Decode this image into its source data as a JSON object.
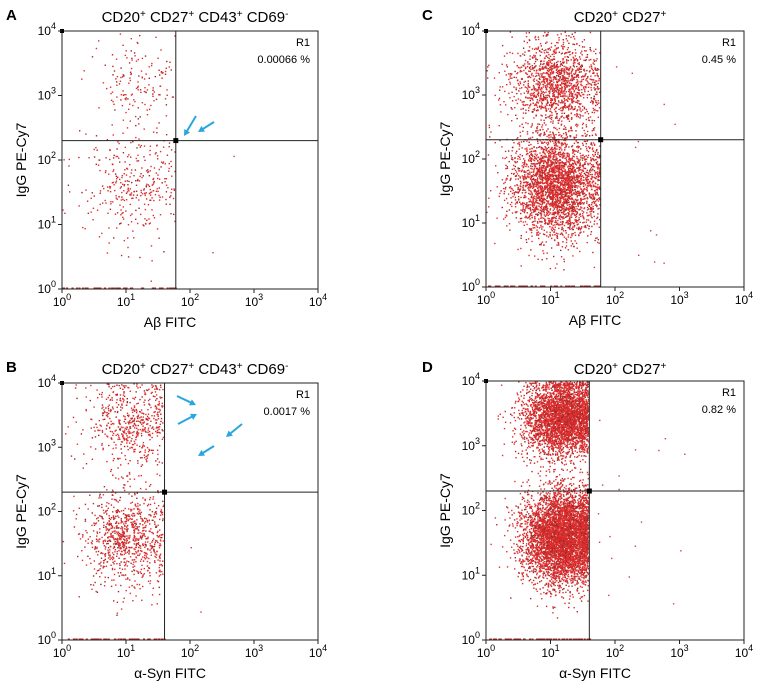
{
  "figure": {
    "panels": [
      {
        "id": "A",
        "label": "A",
        "title": "CD20+ CD27+ CD43+ CD69-",
        "title_parts": [
          {
            "t": "CD20"
          },
          {
            "t": "+",
            "sup": true
          },
          {
            "t": " CD27"
          },
          {
            "t": "+",
            "sup": true
          },
          {
            "t": " CD43"
          },
          {
            "t": "+",
            "sup": true
          },
          {
            "t": " CD69"
          },
          {
            "t": "-",
            "sup": true
          }
        ],
        "xlabel": "Aβ FITC",
        "ylabel": "IgG PE-Cy7",
        "gate_name": "R1",
        "gate_value": "0.00066 %",
        "arrows": 2
      },
      {
        "id": "C",
        "label": "C",
        "title": "CD20+ CD27+",
        "title_parts": [
          {
            "t": "CD20"
          },
          {
            "t": "+",
            "sup": true
          },
          {
            "t": " CD27"
          },
          {
            "t": "+",
            "sup": true
          }
        ],
        "xlabel": "Aβ FITC",
        "ylabel": "IgG PE-Cy7",
        "gate_name": "R1",
        "gate_value": "0.45 %",
        "arrows": 0
      },
      {
        "id": "B",
        "label": "B",
        "title": "CD20+ CD27+ CD43+ CD69-",
        "title_parts": [
          {
            "t": "CD20"
          },
          {
            "t": "+",
            "sup": true
          },
          {
            "t": " CD27"
          },
          {
            "t": "+",
            "sup": true
          },
          {
            "t": " CD43"
          },
          {
            "t": "+",
            "sup": true
          },
          {
            "t": " CD69"
          },
          {
            "t": "-",
            "sup": true
          }
        ],
        "xlabel": "α-Syn FITC",
        "ylabel": "IgG PE-Cy7",
        "gate_name": "R1",
        "gate_value": "0.0017 %",
        "arrows": 4
      },
      {
        "id": "D",
        "label": "D",
        "title": "CD20+ CD27+",
        "title_parts": [
          {
            "t": "CD20"
          },
          {
            "t": "+",
            "sup": true
          },
          {
            "t": " CD27"
          },
          {
            "t": "+",
            "sup": true
          }
        ],
        "xlabel": "α-Syn FITC",
        "ylabel": "IgG PE-Cy7",
        "gate_name": "R1",
        "gate_value": "0.82 %",
        "arrows": 0
      }
    ],
    "colors": {
      "dots": "#e03030",
      "arrow": "#29a6e0",
      "frame": "#222222"
    }
  },
  "chart_data": [
    {
      "type": "scatter",
      "panel": "A",
      "title": "CD20+ CD27+ CD43+ CD69-",
      "xlabel": "Aβ FITC",
      "ylabel": "IgG PE-Cy7",
      "x_scale": "log",
      "y_scale": "log",
      "xlim": [
        1,
        10000
      ],
      "ylim": [
        1,
        10000
      ],
      "ticks": [
        "10^0",
        "10^1",
        "10^2",
        "10^3",
        "10^4"
      ],
      "quadrant_gate": {
        "x": 60,
        "y": 200
      },
      "gate_region": "R1 (upper-right)",
      "gate_percent": 0.00066,
      "populations": [
        {
          "name": "IgG+ FITC-",
          "x_center": 15,
          "y_center": 1500,
          "x_spread": 0.35,
          "y_spread": 0.35,
          "count": 160
        },
        {
          "name": "IgG- FITC-",
          "x_center": 12,
          "y_center": 40,
          "x_spread": 0.4,
          "y_spread": 0.42,
          "count": 340
        }
      ]
    },
    {
      "type": "scatter",
      "panel": "C",
      "title": "CD20+ CD27+",
      "xlabel": "Aβ FITC",
      "ylabel": "IgG PE-Cy7",
      "x_scale": "log",
      "y_scale": "log",
      "xlim": [
        1,
        10000
      ],
      "ylim": [
        1,
        10000
      ],
      "ticks": [
        "10^0",
        "10^1",
        "10^2",
        "10^3",
        "10^4"
      ],
      "quadrant_gate": {
        "x": 60,
        "y": 200
      },
      "gate_region": "R1 (upper-right)",
      "gate_percent": 0.45,
      "populations": [
        {
          "name": "IgG+ FITC-",
          "x_center": 12,
          "y_center": 1500,
          "x_spread": 0.35,
          "y_spread": 0.35,
          "count": 1400
        },
        {
          "name": "IgG- FITC-",
          "x_center": 12,
          "y_center": 40,
          "x_spread": 0.35,
          "y_spread": 0.4,
          "count": 3000
        }
      ]
    },
    {
      "type": "scatter",
      "panel": "B",
      "title": "CD20+ CD27+ CD43+ CD69-",
      "xlabel": "α-Syn FITC",
      "ylabel": "IgG PE-Cy7",
      "x_scale": "log",
      "y_scale": "log",
      "xlim": [
        1,
        10000
      ],
      "ylim": [
        1,
        10000
      ],
      "ticks": [
        "10^0",
        "10^1",
        "10^2",
        "10^3",
        "10^4"
      ],
      "quadrant_gate": {
        "x": 40,
        "y": 200
      },
      "gate_region": "R1 (upper-right)",
      "gate_percent": 0.0017,
      "populations": [
        {
          "name": "IgG+ FITC-",
          "x_center": 12,
          "y_center": 2500,
          "x_spread": 0.35,
          "y_spread": 0.35,
          "count": 550
        },
        {
          "name": "IgG- FITC-",
          "x_center": 10,
          "y_center": 40,
          "x_spread": 0.35,
          "y_spread": 0.38,
          "count": 900
        }
      ]
    },
    {
      "type": "scatter",
      "panel": "D",
      "title": "CD20+ CD27+",
      "xlabel": "α-Syn FITC",
      "ylabel": "IgG PE-Cy7",
      "x_scale": "log",
      "y_scale": "log",
      "xlim": [
        1,
        10000
      ],
      "ylim": [
        1,
        10000
      ],
      "ticks": [
        "10^0",
        "10^1",
        "10^2",
        "10^3",
        "10^4"
      ],
      "quadrant_gate": {
        "x": 40,
        "y": 200
      },
      "gate_region": "R1 (upper-right)",
      "gate_percent": 0.82,
      "populations": [
        {
          "name": "IgG+ FITC-",
          "x_center": 15,
          "y_center": 2800,
          "x_spread": 0.3,
          "y_spread": 0.3,
          "count": 3500
        },
        {
          "name": "IgG- FITC-",
          "x_center": 15,
          "y_center": 40,
          "x_spread": 0.3,
          "y_spread": 0.35,
          "count": 5000
        }
      ]
    }
  ]
}
